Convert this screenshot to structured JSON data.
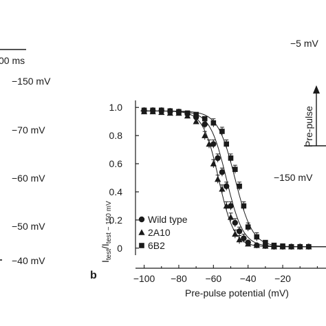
{
  "left_panel": {
    "time_scale_label": "00 ms",
    "voltages": [
      "−150 mV",
      "−70 mV",
      "−60 mV",
      "−50 mV",
      "−40 mV"
    ]
  },
  "protocol_inset": {
    "top_voltage": "−5 mV",
    "axis_label": "Pre-pulse",
    "bottom_voltage": "−150 mV"
  },
  "panel_label": "b",
  "chart_data": {
    "type": "scatter",
    "xlabel": "Pre-pulse potential (mV)",
    "ylabel": {
      "main": "I",
      "sub1": "test",
      "mid": "/I",
      "sub2": "test − 150 mV"
    },
    "xlim": [
      -105,
      5
    ],
    "ylim": [
      -0.05,
      1.05
    ],
    "xticks": [
      -100,
      -80,
      -60,
      -40,
      -20
    ],
    "xtick_labels": [
      "−100",
      "−80",
      "−60",
      "−40",
      "−20"
    ],
    "yticks": [
      0,
      0.2,
      0.4,
      0.6,
      0.8,
      1.0
    ],
    "ytick_labels": [
      "0",
      "0.2",
      "0.4",
      "0.6",
      "0.8",
      "1.0"
    ],
    "legend_position": "bottom-left",
    "series": [
      {
        "name": "Wild type",
        "marker": "circle",
        "v_half": -52.5,
        "slope": 4.8,
        "x": [
          -100,
          -95,
          -90,
          -85,
          -80,
          -75,
          -70,
          -65,
          -60,
          -57.5,
          -55,
          -52.5,
          -50,
          -47.5,
          -45,
          -42.5,
          -40,
          -35,
          -30,
          -25,
          -20,
          -15,
          -10,
          -5
        ],
        "y": [
          0.98,
          0.98,
          0.98,
          0.975,
          0.97,
          0.955,
          0.93,
          0.88,
          0.74,
          0.64,
          0.54,
          0.44,
          0.3,
          0.18,
          0.12,
          0.07,
          0.04,
          0.02,
          0.015,
          0.01,
          0.01,
          0.01,
          0.01,
          0.01
        ]
      },
      {
        "name": "2A10",
        "marker": "triangle",
        "v_half": -57,
        "slope": 4.5,
        "x": [
          -100,
          -95,
          -90,
          -85,
          -80,
          -75,
          -70,
          -65,
          -62.5,
          -60,
          -57.5,
          -55,
          -52.5,
          -50,
          -47.5,
          -45,
          -40,
          -35,
          -30,
          -25,
          -20,
          -15,
          -10,
          -5
        ],
        "y": [
          0.97,
          0.97,
          0.965,
          0.96,
          0.96,
          0.94,
          0.9,
          0.8,
          0.74,
          0.6,
          0.49,
          0.42,
          0.3,
          0.22,
          0.1,
          0.06,
          0.03,
          0.02,
          0.015,
          0.01,
          0.01,
          0.01,
          0.01,
          0.01
        ]
      },
      {
        "name": "6B2",
        "marker": "square",
        "v_half": -47.5,
        "slope": 5,
        "x": [
          -100,
          -95,
          -90,
          -85,
          -80,
          -75,
          -70,
          -65,
          -60,
          -55,
          -52.5,
          -50,
          -47.5,
          -45,
          -42.5,
          -40,
          -35,
          -30,
          -25,
          -20,
          -15,
          -10,
          -5
        ],
        "y": [
          0.98,
          0.98,
          0.98,
          0.975,
          0.97,
          0.96,
          0.95,
          0.92,
          0.89,
          0.83,
          0.74,
          0.64,
          0.56,
          0.44,
          0.3,
          0.15,
          0.08,
          0.04,
          0.02,
          0.015,
          0.01,
          0.01,
          0.01
        ]
      }
    ]
  }
}
